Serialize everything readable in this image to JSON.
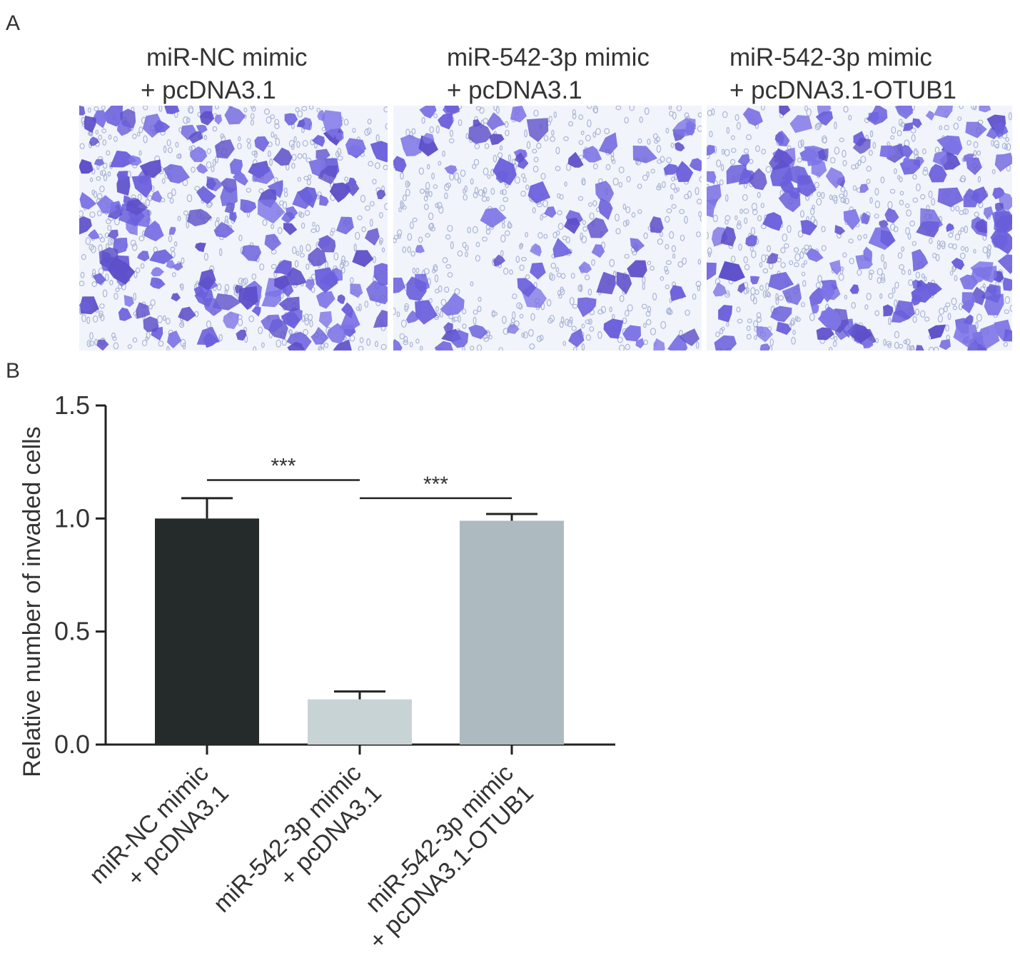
{
  "figure": {
    "panel_a_label": "A",
    "panel_b_label": "B",
    "images": [
      {
        "caption_line1": "miR-NC mimic",
        "caption_line2": "+ pcDNA3.1",
        "density": 1.0
      },
      {
        "caption_line1": "miR-542-3p mimic",
        "caption_line2": "+ pcDNA3.1",
        "density": 0.45
      },
      {
        "caption_line1": "miR-542-3p mimic",
        "caption_line2": "+ pcDNA3.1-OTUB1",
        "density": 0.95
      }
    ]
  },
  "chart_data": {
    "type": "bar",
    "ylabel": "Relative number of invaded cells",
    "xlabel": "",
    "ylim": [
      0,
      1.5
    ],
    "yticks": [
      "0.0",
      "0.5",
      "1.0",
      "1.5"
    ],
    "categories": [
      [
        "miR-NC mimic",
        "+ pcDNA3.1"
      ],
      [
        "miR-542-3p mimic",
        "+ pcDNA3.1"
      ],
      [
        "miR-542-3p mimic",
        "+ pcDNA3.1-OTUB1"
      ]
    ],
    "values": [
      1.0,
      0.2,
      0.99
    ],
    "errors": [
      0.09,
      0.035,
      0.03
    ],
    "colors": [
      "#252b2a",
      "#c8d3d6",
      "#adbbc0"
    ],
    "significance": [
      {
        "from": 0,
        "to": 1,
        "label": "***",
        "y": 1.17
      },
      {
        "from": 1,
        "to": 2,
        "label": "***",
        "y": 1.09
      }
    ]
  }
}
